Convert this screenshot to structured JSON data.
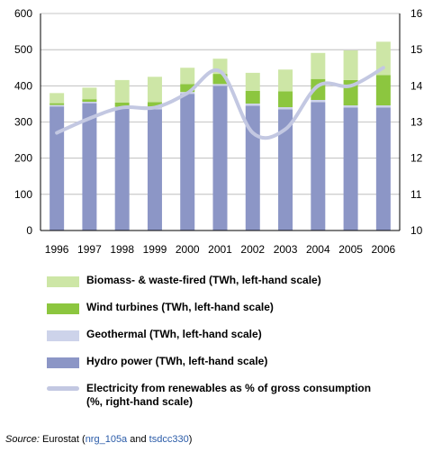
{
  "chart_data": {
    "type": "bar",
    "stacked": true,
    "categories": [
      "1996",
      "1997",
      "1998",
      "1999",
      "2000",
      "2001",
      "2002",
      "2003",
      "2004",
      "2005",
      "2006"
    ],
    "series": [
      {
        "key": "hydro",
        "name": "Hydro power (TWh, left-hand scale)",
        "color": "#8c96c6",
        "values": [
          343,
          352,
          338,
          335,
          378,
          400,
          345,
          335,
          355,
          340,
          340
        ]
      },
      {
        "key": "geo",
        "name": "Geothermal (TWh, left-hand scale)",
        "color": "#cdd3ea",
        "values": [
          4,
          4,
          4,
          5,
          5,
          5,
          6,
          6,
          6,
          6,
          6
        ]
      },
      {
        "key": "wind",
        "name": "Wind turbines (TWh, left-hand scale)",
        "color": "#8cc63f",
        "values": [
          5,
          7,
          12,
          15,
          22,
          28,
          35,
          44,
          58,
          70,
          84
        ]
      },
      {
        "key": "bio",
        "name": "Biomass- & waste-fired (TWh, left-hand scale)",
        "color": "#cde6a6",
        "values": [
          28,
          32,
          62,
          70,
          45,
          42,
          50,
          60,
          72,
          82,
          92
        ]
      }
    ],
    "line": {
      "name": "Electricity from renewables as % of gross consumption (%, right-hand scale)",
      "color": "#c3c8e2",
      "values": [
        12.7,
        13.1,
        13.4,
        13.4,
        13.8,
        14.4,
        12.7,
        12.8,
        14.0,
        14.0,
        14.5
      ]
    },
    "ylim_left": [
      0,
      600
    ],
    "yticks_left": [
      0,
      100,
      200,
      300,
      400,
      500,
      600
    ],
    "ylim_right": [
      10,
      16
    ],
    "yticks_right": [
      10,
      11,
      12,
      13,
      14,
      15,
      16
    ],
    "legend_position": "bottom"
  },
  "legend": [
    {
      "label": "Biomass- & waste-fired (TWh, left-hand scale)",
      "color": "#cde6a6",
      "kind": "box"
    },
    {
      "label": "Wind turbines (TWh, left-hand scale)",
      "color": "#8cc63f",
      "kind": "box"
    },
    {
      "label": "Geothermal (TWh, left-hand scale)",
      "color": "#cdd3ea",
      "kind": "box"
    },
    {
      "label": "Hydro power (TWh, left-hand scale)",
      "color": "#8c96c6",
      "kind": "box"
    },
    {
      "label": "Electricity from renewables as % of gross consumption (%, right-hand scale)",
      "color": "#c3c8e2",
      "kind": "line"
    }
  ],
  "source": {
    "label": "Source:",
    "name": "Eurostat",
    "open": " (",
    "code1": "nrg_105a",
    "and": " and ",
    "code2": "tsdcc330",
    "close": ")"
  }
}
